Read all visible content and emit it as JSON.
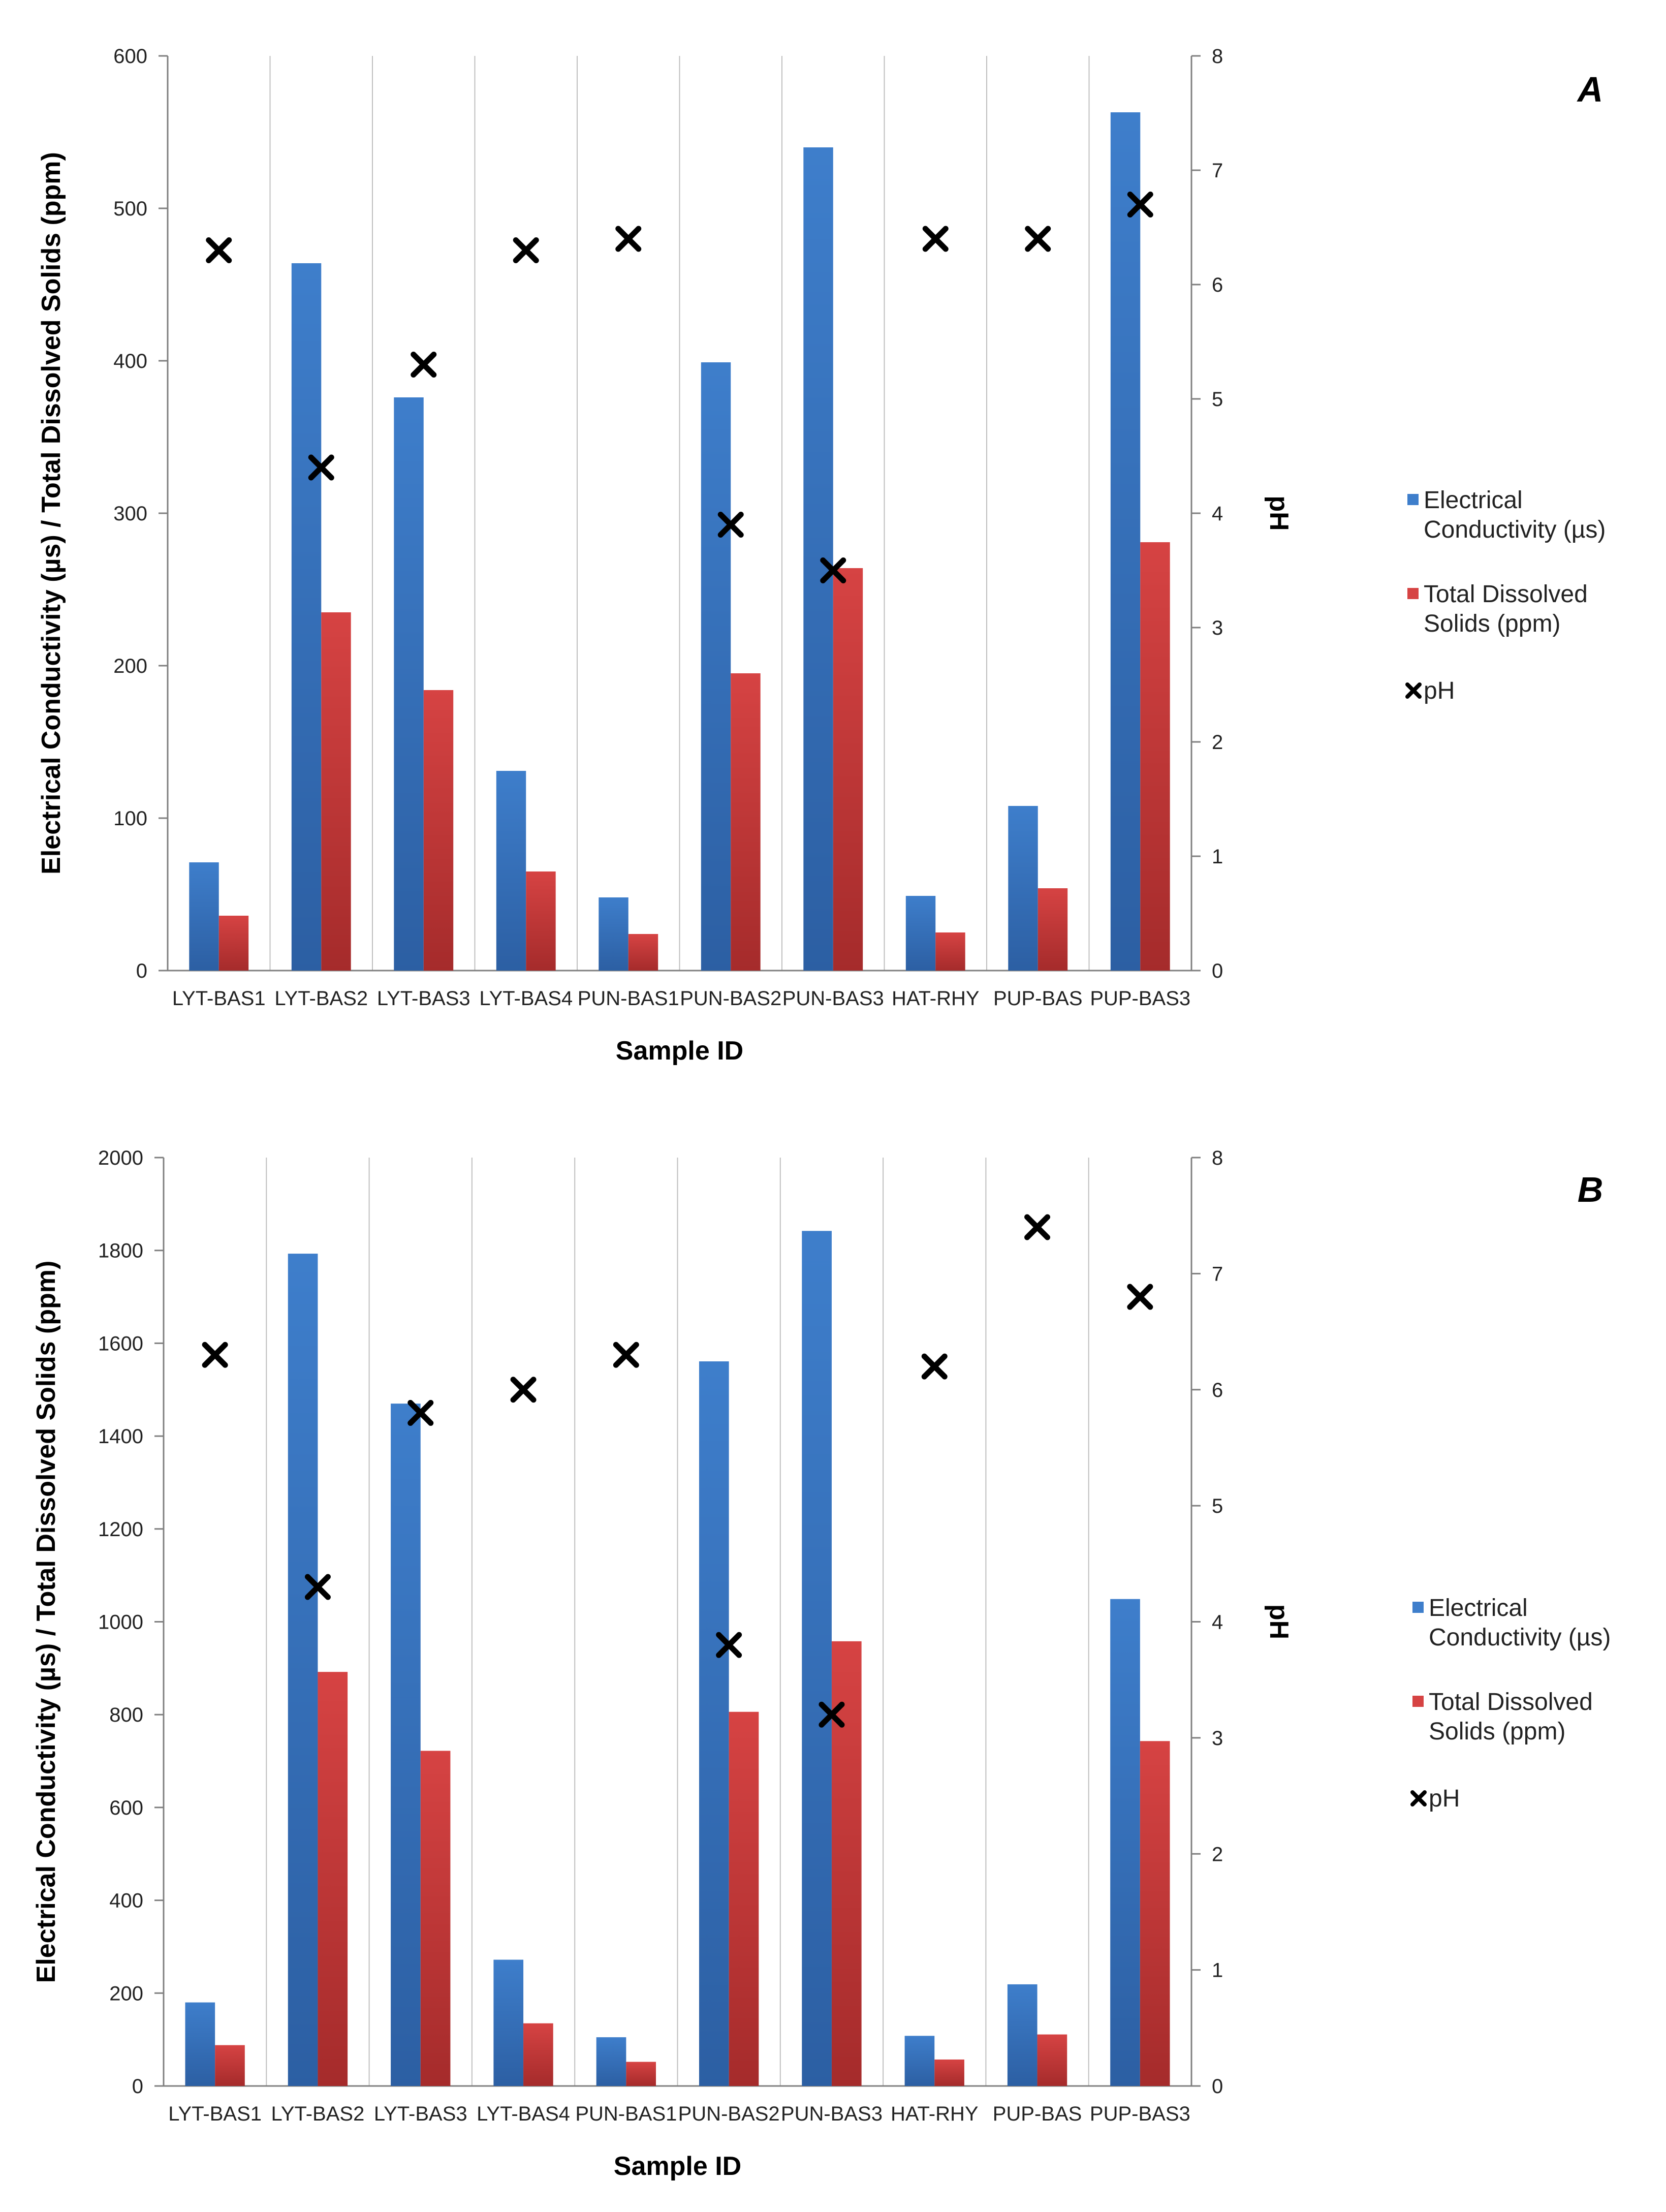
{
  "colors": {
    "ec": "#3E7ECB",
    "ec_dark": "#2C5FA3",
    "tds": "#D64343",
    "tds_dark": "#A52B2B",
    "ph": "#000000",
    "grid": "#BFBFBF",
    "axis": "#7F7F7F"
  },
  "legend": {
    "ec_line1": "Electrical",
    "ec_line2": "Conductivity (µs)",
    "tds_line1": "Total Dissolved",
    "tds_line2": "Solids (ppm)",
    "ph": "pH"
  },
  "chart_data": [
    {
      "type": "bar",
      "panel_label": "A",
      "title": "",
      "xlabel": "Sample ID",
      "ylabel": "Electrical Conductivity (µs) / Total Dissolved Solids (ppm)",
      "y2label": "pH",
      "ylim": [
        0,
        600
      ],
      "yticks": [
        0,
        100,
        200,
        300,
        400,
        500,
        600
      ],
      "y2lim": [
        0,
        8
      ],
      "y2ticks": [
        0,
        1,
        2,
        3,
        4,
        5,
        6,
        7,
        8
      ],
      "categories": [
        "LYT-BAS1",
        "LYT-BAS2",
        "LYT-BAS3",
        "LYT-BAS4",
        "PUN-BAS1",
        "PUN-BAS2",
        "PUN-BAS3",
        "HAT-RHY",
        "PUP-BAS",
        "PUP-BAS3"
      ],
      "series": [
        {
          "name": "Electrical Conductivity (µs)",
          "axis": "left",
          "kind": "bar",
          "values": [
            71,
            464,
            376,
            131,
            48,
            399,
            540,
            49,
            108,
            563
          ]
        },
        {
          "name": "Total Dissolved Solids (ppm)",
          "axis": "left",
          "kind": "bar",
          "values": [
            36,
            235,
            184,
            65,
            24,
            195,
            264,
            25,
            54,
            281
          ]
        },
        {
          "name": "pH",
          "axis": "right",
          "kind": "marker",
          "values": [
            6.3,
            4.4,
            5.3,
            6.3,
            6.4,
            3.9,
            3.5,
            6.4,
            6.4,
            6.7
          ]
        }
      ],
      "legend_position": "right"
    },
    {
      "type": "bar",
      "panel_label": "B",
      "title": "",
      "xlabel": "Sample ID",
      "ylabel": "Electrical Conductivity (µs) / Total Dissolved Solids (ppm)",
      "y2label": "pH",
      "ylim": [
        0,
        2000
      ],
      "yticks": [
        0,
        200,
        400,
        600,
        800,
        1000,
        1200,
        1400,
        1600,
        1800,
        2000
      ],
      "y2lim": [
        0,
        8
      ],
      "y2ticks": [
        0,
        1,
        2,
        3,
        4,
        5,
        6,
        7,
        8
      ],
      "categories": [
        "LYT-BAS1",
        "LYT-BAS2",
        "LYT-BAS3",
        "LYT-BAS4",
        "PUN-BAS1",
        "PUN-BAS2",
        "PUN-BAS3",
        "HAT-RHY",
        "PUP-BAS",
        "PUP-BAS3"
      ],
      "series": [
        {
          "name": "Electrical Conductivity (µs)",
          "axis": "left",
          "kind": "bar",
          "values": [
            180,
            1793,
            1470,
            272,
            105,
            1561,
            1842,
            108,
            219,
            1049
          ]
        },
        {
          "name": "Total Dissolved Solids (ppm)",
          "axis": "left",
          "kind": "bar",
          "values": [
            88,
            892,
            722,
            135,
            52,
            806,
            958,
            57,
            111,
            743
          ]
        },
        {
          "name": "pH",
          "axis": "right",
          "kind": "marker",
          "values": [
            6.3,
            4.3,
            5.8,
            6.0,
            6.3,
            3.8,
            3.2,
            6.2,
            7.4,
            6.8
          ]
        }
      ],
      "legend_position": "right"
    }
  ]
}
